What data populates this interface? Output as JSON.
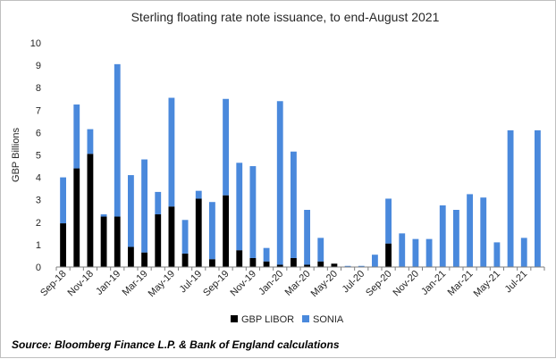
{
  "chart_data": {
    "type": "bar",
    "stacked": true,
    "title": "Sterling floating rate note issuance, to end-August 2021",
    "ylabel": "GBP Billions",
    "xlabel": "",
    "ylim": [
      0,
      10
    ],
    "yticks": [
      0,
      1,
      2,
      3,
      4,
      5,
      6,
      7,
      8,
      9,
      10
    ],
    "grid": false,
    "legend_position": "bottom",
    "categories": [
      "Sep-18",
      "Oct-18",
      "Nov-18",
      "Dec-18",
      "Jan-19",
      "Feb-19",
      "Mar-19",
      "Apr-19",
      "May-19",
      "Jun-19",
      "Jul-19",
      "Aug-19",
      "Sep-19",
      "Oct-19",
      "Nov-19",
      "Dec-19",
      "Jan-20",
      "Feb-20",
      "Mar-20",
      "Apr-20",
      "May-20",
      "Jun-20",
      "Jul-20",
      "Aug-20",
      "Sep-20",
      "Oct-20",
      "Nov-20",
      "Dec-20",
      "Jan-21",
      "Feb-21",
      "Mar-21",
      "Apr-21",
      "May-21",
      "Jun-21",
      "Jul-21",
      "Aug-21"
    ],
    "tick_labels": [
      "Sep-18",
      "Nov-18",
      "Jan-19",
      "Mar-19",
      "May-19",
      "Jul-19",
      "Sep-19",
      "Nov-19",
      "Jan-20",
      "Mar-20",
      "May-20",
      "Jul-20",
      "Sep-20",
      "Nov-20",
      "Jan-21",
      "Mar-21",
      "May-21",
      "Jul-21"
    ],
    "series": [
      {
        "name": "GBP LIBOR",
        "color": "#000000",
        "values": [
          1.95,
          4.4,
          5.05,
          2.25,
          2.25,
          0.9,
          0.65,
          2.35,
          2.7,
          0.6,
          3.05,
          0.35,
          3.2,
          0.75,
          0.4,
          0.25,
          0.1,
          0.4,
          0.1,
          0.25,
          0.15,
          0.0,
          0.0,
          0.0,
          1.05,
          0.0,
          0.0,
          0.0,
          0.0,
          0.0,
          0.0,
          0.0,
          0.0,
          0.0,
          0.0,
          0.0
        ]
      },
      {
        "name": "SONIA",
        "color": "#4a89dc",
        "values": [
          2.05,
          2.85,
          1.1,
          0.1,
          6.8,
          3.2,
          4.15,
          1.0,
          4.85,
          1.5,
          0.35,
          2.55,
          4.3,
          3.9,
          4.1,
          0.6,
          7.3,
          4.75,
          2.45,
          1.05,
          0.0,
          0.05,
          0.05,
          0.55,
          2.0,
          1.5,
          1.25,
          1.25,
          2.75,
          2.55,
          3.25,
          3.1,
          1.1,
          6.1,
          1.3,
          6.1
        ]
      }
    ]
  },
  "source_note": "Source: Bloomberg Finance L.P. & Bank of England calculations"
}
